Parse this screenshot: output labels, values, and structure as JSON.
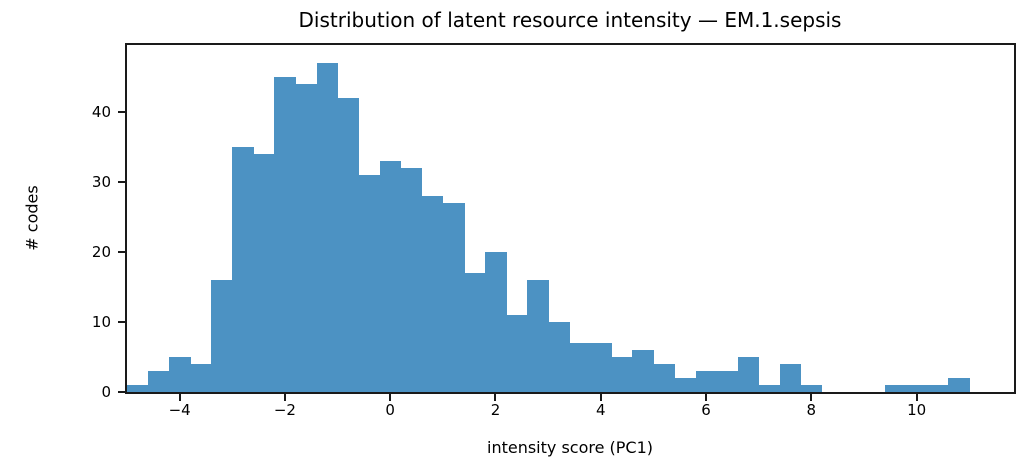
{
  "chart_data": {
    "type": "bar",
    "subtype": "histogram",
    "title": "Distribution of latent resource intensity — EM.1.sepsis",
    "xlabel": "intensity score (PC1)",
    "ylabel": "# codes",
    "bar_color": "#4C92C3",
    "axis_color": "#1a1a1a",
    "background_color": "#ffffff",
    "bin_start": -5.0,
    "bin_width": 0.4,
    "bin_count": 40,
    "counts": [
      1,
      3,
      5,
      4,
      16,
      35,
      34,
      45,
      44,
      47,
      42,
      31,
      33,
      32,
      28,
      27,
      17,
      20,
      11,
      16,
      10,
      7,
      7,
      5,
      6,
      4,
      2,
      3,
      3,
      5,
      1,
      4,
      1,
      0,
      0,
      0,
      1,
      1,
      1,
      2
    ],
    "xlim": [
      -5.0,
      11.85
    ],
    "ylim": [
      0,
      49.6
    ],
    "grid": false,
    "legend": null,
    "x_ticks": [
      {
        "value": -4,
        "label": "−4"
      },
      {
        "value": -2,
        "label": "−2"
      },
      {
        "value": 0,
        "label": "0"
      },
      {
        "value": 2,
        "label": "2"
      },
      {
        "value": 4,
        "label": "4"
      },
      {
        "value": 6,
        "label": "6"
      },
      {
        "value": 8,
        "label": "8"
      },
      {
        "value": 10,
        "label": "10"
      }
    ],
    "y_ticks": [
      {
        "value": 0,
        "label": "0"
      },
      {
        "value": 10,
        "label": "10"
      },
      {
        "value": 20,
        "label": "20"
      },
      {
        "value": 30,
        "label": "30"
      },
      {
        "value": 40,
        "label": "40"
      }
    ]
  }
}
